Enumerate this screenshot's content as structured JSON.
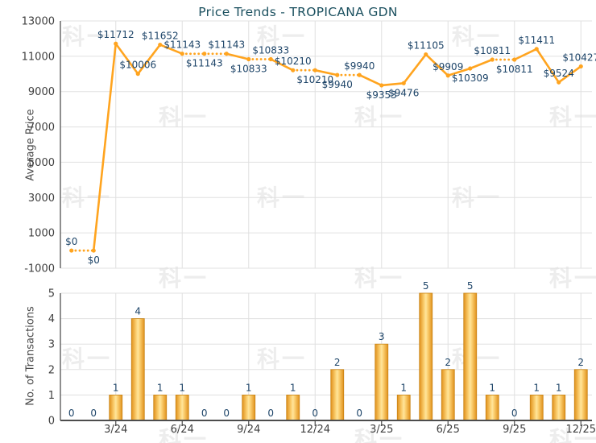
{
  "title": "Price Trends - TROPICANA GDN",
  "watermark": {
    "text": "科一"
  },
  "colors": {
    "title_text": "#1B505F",
    "line": "#FFA41F",
    "data_label": "#1E4569",
    "bar_edge": "#E0911C",
    "bar_mid": "#FBCE6F",
    "bar_center": "#FFE59A",
    "bar_border": "#C98415",
    "grid": "#E0E0E0",
    "axis": "#5F5F5F",
    "axis_dark": "#4D4D4D",
    "tick_text": "#3F3F3F",
    "axis_title_text": "#4A4A4A",
    "watermark": "#EDEDED"
  },
  "chart_data": [
    {
      "type": "line",
      "title": "Price Trends - TROPICANA GDN",
      "ylabel": "Average Price",
      "ylim": [
        -1000,
        13000
      ],
      "yticks": [
        13000,
        11000,
        9000,
        7000,
        5000,
        3000,
        1000,
        -1000
      ],
      "grid": true,
      "legend_position": "none",
      "categories": [
        "1/24",
        "2/24",
        "3/24",
        "4/24",
        "5/24",
        "6/24",
        "7/24",
        "8/24",
        "9/24",
        "10/24",
        "11/24",
        "12/24",
        "1/25",
        "2/25",
        "3/25",
        "4/25",
        "5/25",
        "6/25",
        "7/25",
        "8/25",
        "9/25",
        "10/25",
        "11/25",
        "12/25"
      ],
      "values": [
        0,
        0,
        11712,
        10006,
        11652,
        11143,
        11143,
        11143,
        10833,
        10833,
        10210,
        10210,
        9940,
        9940,
        9353,
        9476,
        11105,
        9909,
        10309,
        10811,
        10811,
        11411,
        9524,
        10427
      ],
      "point_labels": [
        "$0",
        "$0",
        "$11712",
        "$10006",
        "$11652",
        "$11143",
        "$11143",
        "$11143",
        "$10833",
        "$10833",
        "$10210",
        "$10210",
        "$9940",
        "$9940",
        "$9353",
        "$9476",
        "$11105",
        "$9909",
        "$10309",
        "$10811",
        "$10811",
        "$11411",
        "$9524",
        "$10427"
      ],
      "label_side": [
        "above",
        "below",
        "above",
        "above",
        "above",
        "above",
        "below",
        "above",
        "below",
        "above",
        "above",
        "below",
        "below",
        "above",
        "below",
        "below",
        "above",
        "above",
        "below",
        "above",
        "below",
        "above",
        "above",
        "above"
      ],
      "dotted_when_next_month_has_zero_transactions": true
    },
    {
      "type": "bar",
      "ylabel": "No. of Transactions",
      "ylim": [
        0,
        5
      ],
      "yticks": [
        5,
        4,
        3,
        2,
        1,
        0
      ],
      "grid": true,
      "categories": [
        "1/24",
        "2/24",
        "3/24",
        "4/24",
        "5/24",
        "6/24",
        "7/24",
        "8/24",
        "9/24",
        "10/24",
        "11/24",
        "12/24",
        "1/25",
        "2/25",
        "3/25",
        "4/25",
        "5/25",
        "6/25",
        "7/25",
        "8/25",
        "9/25",
        "10/25",
        "11/25",
        "12/25"
      ],
      "values": [
        0,
        0,
        1,
        4,
        1,
        1,
        0,
        0,
        1,
        0,
        1,
        0,
        2,
        0,
        3,
        1,
        5,
        2,
        5,
        1,
        0,
        1,
        1,
        2
      ],
      "xtick_labels": [
        "3/24",
        "6/24",
        "9/24",
        "12/24",
        "3/25",
        "6/25",
        "9/25",
        "12/25"
      ],
      "xtick_positions": [
        3,
        6,
        9,
        12,
        15,
        18,
        21,
        24
      ]
    }
  ]
}
